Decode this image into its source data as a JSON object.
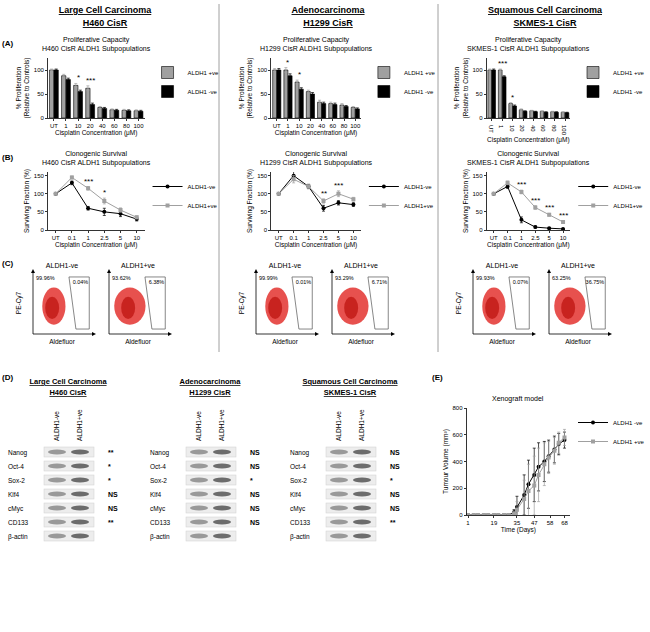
{
  "headers": [
    {
      "title": "Large Cell Carcinoma",
      "subtitle": "H460 CisR"
    },
    {
      "title": "Adenocarcinoma",
      "subtitle": "H1299 CisR"
    },
    {
      "title": "Squamous Cell Carcinoma",
      "subtitle": "SKMES-1 CisR"
    }
  ],
  "panel_labels": [
    "(A)",
    "(B)",
    "(C)",
    "(D)",
    "(E)"
  ],
  "chart_data": [
    {
      "type": "bar",
      "title": "Proliferative Capacity",
      "subtitle": "H460 CisR ALDH1 Subpopulations",
      "x_label": "Cisplatin Concentration (μM)",
      "y_label": "% Proliferation\n(Relative to Controls)",
      "categories": [
        "UT",
        "1",
        "10",
        "20",
        "40",
        "60",
        "80",
        "100"
      ],
      "series": [
        {
          "name": "ALDH1 +ve",
          "color": "#a0a0a0",
          "values": [
            100,
            88,
            68,
            62,
            22,
            17,
            16,
            15
          ],
          "errors": [
            2,
            3,
            4,
            5,
            2,
            2,
            2,
            2
          ]
        },
        {
          "name": "ALDH1 -ve",
          "color": "#000000",
          "values": [
            100,
            80,
            55,
            28,
            20,
            16,
            15,
            14
          ],
          "errors": [
            2,
            3,
            3,
            3,
            2,
            2,
            2,
            2
          ]
        }
      ],
      "ylim": [
        0,
        125
      ],
      "yticks": [
        0,
        50,
        100
      ],
      "grid": false,
      "legend": "right",
      "annotations": [
        {
          "category": "10",
          "text": "*"
        },
        {
          "category": "20",
          "text": "***"
        }
      ]
    },
    {
      "type": "bar",
      "title": "Proliferative Capacity",
      "subtitle": "H1299 CisR ALDH1 Subpopulations",
      "x_label": "Cisplatin Concentration (μM)",
      "y_label": "% Proliferation\n(Relative to Controls)",
      "categories": [
        "UT",
        "1",
        "10",
        "20",
        "40",
        "60",
        "80",
        "100"
      ],
      "series": [
        {
          "name": "ALDH1 +ve",
          "color": "#a0a0a0",
          "values": [
            100,
            100,
            75,
            55,
            33,
            30,
            27,
            22
          ],
          "errors": [
            3,
            5,
            4,
            3,
            4,
            3,
            3,
            2
          ]
        },
        {
          "name": "ALDH1 -ve",
          "color": "#000000",
          "values": [
            100,
            88,
            60,
            50,
            30,
            28,
            24,
            19
          ],
          "errors": [
            3,
            4,
            3,
            3,
            3,
            3,
            2,
            2
          ]
        }
      ],
      "ylim": [
        0,
        125
      ],
      "yticks": [
        0,
        50,
        100
      ],
      "grid": false,
      "legend": "right",
      "annotations": [
        {
          "category": "1",
          "text": "*"
        },
        {
          "category": "10",
          "text": "*"
        }
      ]
    },
    {
      "type": "bar",
      "title": "Proliferative Capacity",
      "subtitle": "SKMES-1 CisR ALDH1 Subpopulations",
      "x_label": "Cisplatin Concentration (μM)",
      "y_label": "% Proliferation\n(Relative to Controls)",
      "categories": [
        "UT",
        "1",
        "10",
        "20",
        "40",
        "60",
        "80",
        "100"
      ],
      "series": [
        {
          "name": "ALDH1 +ve",
          "color": "#a0a0a0",
          "values": [
            100,
            100,
            30,
            17,
            15,
            14,
            13,
            12
          ],
          "errors": [
            2,
            2,
            2,
            2,
            1,
            1,
            1,
            1
          ]
        },
        {
          "name": "ALDH1 -ve",
          "color": "#000000",
          "values": [
            100,
            86,
            25,
            14,
            13,
            12,
            12,
            11
          ],
          "errors": [
            2,
            2,
            2,
            1,
            1,
            1,
            1,
            1
          ]
        }
      ],
      "ylim": [
        0,
        125
      ],
      "yticks": [
        0,
        50,
        100
      ],
      "grid": false,
      "legend": "right",
      "annotations": [
        {
          "category": "1",
          "text": "***"
        },
        {
          "category": "10",
          "text": "*"
        }
      ]
    },
    {
      "type": "line",
      "title": "Clonogenic Survival",
      "subtitle": "H460 CisR ALDH1 Subpopulations",
      "x_label": "Cisplatin Concentration (μM)",
      "y_label": "Surviving Fraction (%)",
      "categories": [
        "UT",
        "0.1",
        "1",
        "2.5",
        "5",
        "10"
      ],
      "series": [
        {
          "name": "ALDH1-ve",
          "color": "#000000",
          "marker": "circle",
          "values": [
            100,
            130,
            60,
            50,
            45,
            30
          ],
          "errors": [
            0,
            5,
            5,
            10,
            8,
            5
          ]
        },
        {
          "name": "ALDH1+ve",
          "color": "#a0a0a0",
          "marker": "square",
          "values": [
            100,
            145,
            115,
            80,
            55,
            35
          ],
          "errors": [
            0,
            4,
            5,
            8,
            6,
            4
          ]
        }
      ],
      "ylim": [
        0,
        160
      ],
      "yticks": [
        0,
        50,
        100,
        150
      ],
      "grid": false,
      "legend": "right",
      "annotations": [
        {
          "category": "1",
          "text": "***"
        },
        {
          "category": "2.5",
          "text": "*"
        }
      ]
    },
    {
      "type": "line",
      "title": "Clonogenic Survival",
      "subtitle": "H1299 CisR ALDH1 Subpopulations",
      "x_label": "Cisplatin Concentration (μM)",
      "y_label": "Surviving Fraction (%)",
      "categories": [
        "UT",
        "0.1",
        "1",
        "2.5",
        "5",
        "10"
      ],
      "series": [
        {
          "name": "ALDH1-ve",
          "color": "#000000",
          "marker": "circle",
          "values": [
            100,
            150,
            120,
            60,
            75,
            70
          ],
          "errors": [
            0,
            12,
            6,
            8,
            6,
            5
          ]
        },
        {
          "name": "ALDH1+ve",
          "color": "#a0a0a0",
          "marker": "square",
          "values": [
            100,
            140,
            120,
            80,
            100,
            85
          ],
          "errors": [
            0,
            10,
            5,
            6,
            8,
            5
          ]
        }
      ],
      "ylim": [
        0,
        160
      ],
      "yticks": [
        0,
        50,
        100,
        150
      ],
      "grid": false,
      "legend": "right",
      "annotations": [
        {
          "category": "2.5",
          "text": "**"
        },
        {
          "category": "5",
          "text": "***"
        }
      ]
    },
    {
      "type": "line",
      "title": "Clonogenic Survival",
      "subtitle": "SKMES-1 CisR ALDH1 Subpopulations",
      "x_label": "Cisplatin Concentration (μM)",
      "y_label": "Surviving Fraction (%)",
      "categories": [
        "UT",
        "0.1",
        "1",
        "2.5",
        "5",
        "10"
      ],
      "series": [
        {
          "name": "ALDH1-ve",
          "color": "#000000",
          "marker": "circle",
          "values": [
            100,
            120,
            28,
            8,
            5,
            3
          ],
          "errors": [
            0,
            5,
            8,
            3,
            2,
            1
          ]
        },
        {
          "name": "ALDH1+ve",
          "color": "#a0a0a0",
          "marker": "square",
          "values": [
            100,
            130,
            105,
            62,
            42,
            22
          ],
          "errors": [
            0,
            5,
            5,
            5,
            4,
            3
          ]
        }
      ],
      "ylim": [
        0,
        160
      ],
      "yticks": [
        0,
        50,
        100,
        150
      ],
      "grid": false,
      "legend": "right",
      "annotations": [
        {
          "category": "1",
          "text": "***"
        },
        {
          "category": "2.5",
          "text": "***"
        },
        {
          "category": "5",
          "text": "***"
        },
        {
          "category": "10",
          "text": "***"
        }
      ]
    },
    {
      "type": "line",
      "title": "Xenograft model",
      "x_label": "Time (Days)",
      "y_label": "Tumour Volume (mm³)",
      "x": [
        1,
        5,
        8,
        12,
        15,
        19,
        22,
        26,
        29,
        33,
        35,
        40,
        43,
        47,
        50,
        54,
        57,
        61,
        64,
        68
      ],
      "series": [
        {
          "name": "ALDH1 -ve",
          "color": "#000000",
          "marker": "circle",
          "values": [
            0,
            0,
            0,
            0,
            0,
            0,
            0,
            0,
            0,
            20,
            60,
            150,
            230,
            300,
            360,
            400,
            440,
            490,
            530,
            560
          ],
          "errors": [
            0,
            0,
            0,
            0,
            0,
            0,
            0,
            0,
            0,
            20,
            80,
            150,
            180,
            200,
            180,
            150,
            120,
            100,
            80,
            60
          ]
        },
        {
          "name": "ALDH1 +ve",
          "color": "#a0a0a0",
          "marker": "square",
          "values": [
            0,
            0,
            0,
            0,
            0,
            0,
            0,
            0,
            0,
            10,
            40,
            120,
            180,
            220,
            300,
            380,
            430,
            480,
            540,
            580
          ],
          "errors": [
            0,
            0,
            0,
            0,
            0,
            0,
            0,
            0,
            0,
            15,
            60,
            140,
            200,
            220,
            200,
            160,
            120,
            100,
            80,
            60
          ]
        }
      ],
      "xlim": [
        0,
        72
      ],
      "xticks": [
        1,
        19,
        35,
        47,
        58,
        68
      ],
      "ylim": [
        0,
        800
      ],
      "yticks": [
        0,
        200,
        400,
        600,
        800
      ],
      "grid": false,
      "legend": "right"
    }
  ],
  "flow_cytometry": {
    "x_label": "Aldefluor",
    "y_label": "PE-Cy7",
    "panels": [
      {
        "plots": [
          {
            "title": "ALDH1-ve",
            "outside_gate": "99.96%",
            "inside_gate": "0.04%"
          },
          {
            "title": "ALDH1+ve",
            "outside_gate": "93.62%",
            "inside_gate": "6.38%"
          }
        ]
      },
      {
        "plots": [
          {
            "title": "ALDH1-ve",
            "outside_gate": "99.99%",
            "inside_gate": "0.01%"
          },
          {
            "title": "ALDH1+ve",
            "outside_gate": "93.29%",
            "inside_gate": "6.71%"
          }
        ]
      },
      {
        "plots": [
          {
            "title": "ALDH1-ve",
            "outside_gate": "99.93%",
            "inside_gate": "0.07%"
          },
          {
            "title": "ALDH1+ve",
            "outside_gate": "63.25%",
            "inside_gate": "36.75%"
          }
        ]
      }
    ]
  },
  "western_blots": {
    "lanes": [
      "ALDH1-ve",
      "ALDH1+ve"
    ],
    "proteins": [
      "Nanog",
      "Oct-4",
      "Sox-2",
      "Klf4",
      "cMyc",
      "CD133",
      "β-actin"
    ],
    "panels": [
      {
        "title": "Large Cell Carcinoma",
        "subtitle": "H460 CisR",
        "significance": [
          "**",
          "*",
          "*",
          "NS",
          "NS",
          "**"
        ]
      },
      {
        "title": "Adenocarcinoma",
        "subtitle": "H1299 CisR",
        "significance": [
          "NS",
          "NS",
          "*",
          "NS",
          "NS",
          "NS"
        ]
      },
      {
        "title": "Squamous Cell Carcinoma",
        "subtitle": "SKMES-1 CisR",
        "significance": [
          "NS",
          "NS",
          "*",
          "NS",
          "NS",
          "**"
        ]
      }
    ]
  }
}
